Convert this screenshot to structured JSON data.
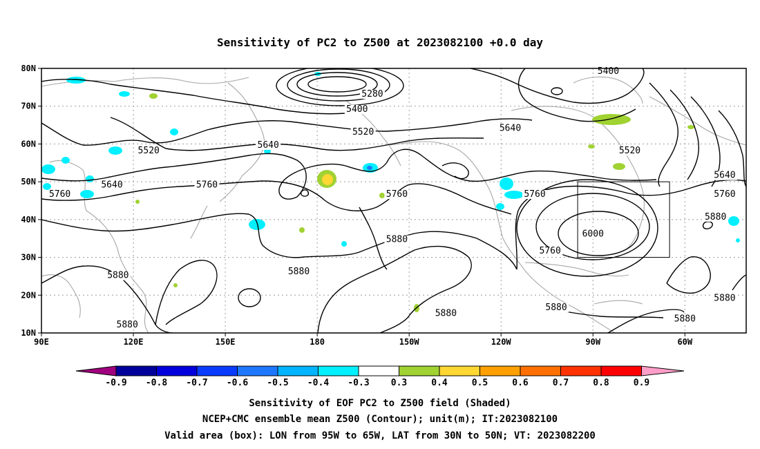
{
  "title": "Sensitivity of PC2 to Z500 at 2023082100 +0.0 day",
  "map": {
    "lon_ticks": [
      "90E",
      "120E",
      "150E",
      "180",
      "150W",
      "120W",
      "90W",
      "60W"
    ],
    "lat_ticks": [
      "80N",
      "70N",
      "60N",
      "50N",
      "40N",
      "30N",
      "20N",
      "10N"
    ],
    "lon_range_deg": [
      90,
      320
    ],
    "lat_range_deg": [
      10,
      80
    ],
    "grid": true,
    "valid_box": {
      "lon_w": 265,
      "lon_e": 295,
      "lat_s": 30,
      "lat_n": 50
    }
  },
  "contour_labels": [
    {
      "text": "5280",
      "lon": 198,
      "lat": 72.5
    },
    {
      "text": "5400",
      "lon": 193,
      "lat": 68.5
    },
    {
      "text": "5520",
      "lon": 195,
      "lat": 62.5
    },
    {
      "text": "5400",
      "lon": 275,
      "lat": 78.5
    },
    {
      "text": "5640",
      "lon": 243,
      "lat": 63.5
    },
    {
      "text": "5520",
      "lon": 125,
      "lat": 57.5
    },
    {
      "text": "5640",
      "lon": 164,
      "lat": 59.0
    },
    {
      "text": "5520",
      "lon": 282,
      "lat": 57.5
    },
    {
      "text": "5640",
      "lon": 113,
      "lat": 48.5
    },
    {
      "text": "5760",
      "lon": 96,
      "lat": 46.0
    },
    {
      "text": "5760",
      "lon": 144,
      "lat": 48.5
    },
    {
      "text": "5760",
      "lon": 206,
      "lat": 46.0
    },
    {
      "text": "5760",
      "lon": 251,
      "lat": 46.0
    },
    {
      "text": "5640",
      "lon": 313,
      "lat": 51.0
    },
    {
      "text": "5760",
      "lon": 313,
      "lat": 46.0
    },
    {
      "text": "5880",
      "lon": 310,
      "lat": 40.0
    },
    {
      "text": "6000",
      "lon": 270,
      "lat": 35.5
    },
    {
      "text": "5880",
      "lon": 206,
      "lat": 34.0
    },
    {
      "text": "5760",
      "lon": 256,
      "lat": 31.0
    },
    {
      "text": "5880",
      "lon": 115,
      "lat": 24.5
    },
    {
      "text": "5880",
      "lon": 174,
      "lat": 25.5
    },
    {
      "text": "5880",
      "lon": 222,
      "lat": 14.5
    },
    {
      "text": "5880",
      "lon": 258,
      "lat": 16.0
    },
    {
      "text": "5880",
      "lon": 313,
      "lat": 18.5
    },
    {
      "text": "5880",
      "lon": 300,
      "lat": 13.0
    },
    {
      "text": "5880",
      "lon": 118,
      "lat": 11.5
    }
  ],
  "colorbar": {
    "labels": [
      "-0.9",
      "-0.8",
      "-0.7",
      "-0.6",
      "-0.5",
      "-0.4",
      "-0.3",
      "0.3",
      "0.4",
      "0.5",
      "0.6",
      "0.7",
      "0.8",
      "0.9"
    ],
    "colors": [
      "#a0007f",
      "#00009b",
      "#0000dd",
      "#0a3cff",
      "#1e78ff",
      "#00b4ff",
      "#00f0ff",
      "#ffffff",
      "#a0d232",
      "#ffd732",
      "#ffa000",
      "#ff7000",
      "#ff3200",
      "#ff0000",
      "#ff9ec8"
    ]
  },
  "caption": {
    "line1": "Sensitivity of EOF PC2 to Z500 field (Shaded)",
    "line2": "NCEP+CMC ensemble mean Z500 (Contour); unit(m); IT:2023082100",
    "line3": "Valid area (box): LON from 95W to 65W, LAT from 30N to 50N; VT: 2023082200"
  }
}
